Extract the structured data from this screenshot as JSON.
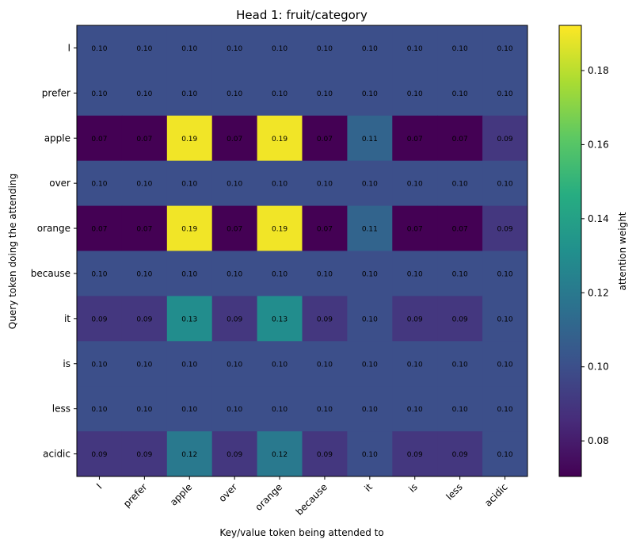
{
  "chart_data": {
    "type": "heatmap",
    "title": "Head 1: fruit/category",
    "xlabel": "Key/value token being attended to",
    "ylabel": "Query token doing the attending",
    "x_tokens": [
      "I",
      "prefer",
      "apple",
      "over",
      "orange",
      "because",
      "it",
      "is",
      "less",
      "acidic"
    ],
    "y_tokens": [
      "I",
      "prefer",
      "apple",
      "over",
      "orange",
      "because",
      "it",
      "is",
      "less",
      "acidic"
    ],
    "values": [
      [
        0.1,
        0.1,
        0.1,
        0.1,
        0.1,
        0.1,
        0.1,
        0.1,
        0.1,
        0.1
      ],
      [
        0.1,
        0.1,
        0.1,
        0.1,
        0.1,
        0.1,
        0.1,
        0.1,
        0.1,
        0.1
      ],
      [
        0.07,
        0.07,
        0.19,
        0.07,
        0.19,
        0.07,
        0.11,
        0.07,
        0.07,
        0.09
      ],
      [
        0.1,
        0.1,
        0.1,
        0.1,
        0.1,
        0.1,
        0.1,
        0.1,
        0.1,
        0.1
      ],
      [
        0.07,
        0.07,
        0.19,
        0.07,
        0.19,
        0.07,
        0.11,
        0.07,
        0.07,
        0.09
      ],
      [
        0.1,
        0.1,
        0.1,
        0.1,
        0.1,
        0.1,
        0.1,
        0.1,
        0.1,
        0.1
      ],
      [
        0.09,
        0.09,
        0.13,
        0.09,
        0.13,
        0.09,
        0.1,
        0.09,
        0.09,
        0.1
      ],
      [
        0.1,
        0.1,
        0.1,
        0.1,
        0.1,
        0.1,
        0.1,
        0.1,
        0.1,
        0.1
      ],
      [
        0.1,
        0.1,
        0.1,
        0.1,
        0.1,
        0.1,
        0.1,
        0.1,
        0.1,
        0.1
      ],
      [
        0.09,
        0.09,
        0.12,
        0.09,
        0.12,
        0.09,
        0.1,
        0.09,
        0.09,
        0.1
      ]
    ],
    "value_range": [
      0.0704,
      0.1922
    ],
    "colormap": "viridis",
    "colorbar": {
      "label": "attention weight",
      "ticks": [
        0.08,
        0.1,
        0.12,
        0.14,
        0.16,
        0.18
      ],
      "tick_labels": [
        "0.08",
        "0.10",
        "0.12",
        "0.14",
        "0.16",
        "0.18"
      ]
    },
    "cell_label_color": "#000000"
  }
}
